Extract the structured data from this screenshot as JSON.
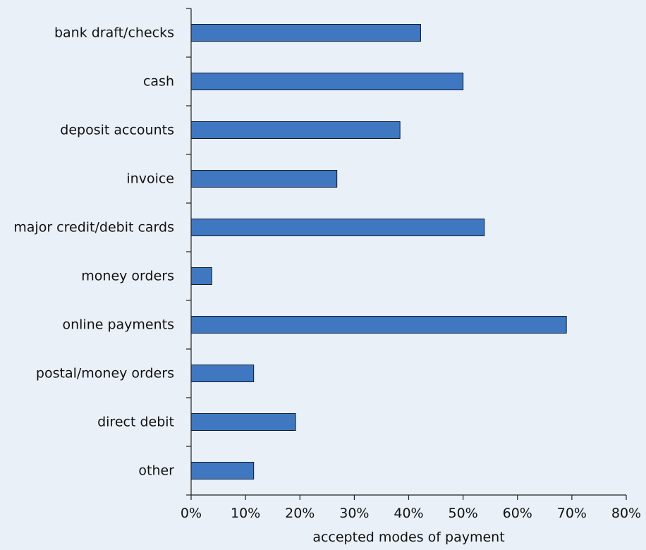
{
  "colors": {
    "background": "#eaf0f7",
    "bar_fill": "#3f78c0",
    "bar_stroke": "#0d1b33",
    "axis": "#222222",
    "text": "#111111"
  },
  "chart_data": {
    "type": "bar",
    "orientation": "horizontal",
    "title": "",
    "xlabel": "accepted modes of payment",
    "ylabel": "",
    "categories": [
      "bank draft/checks",
      "cash",
      "deposit accounts",
      "invoice",
      "major credit/debit cards",
      "money orders",
      "online payments",
      "postal/money orders",
      "direct debit",
      "other"
    ],
    "values": [
      42.2,
      50,
      38.4,
      26.8,
      53.9,
      3.8,
      69,
      11.5,
      19.2,
      11.5
    ],
    "value_unit": "%",
    "xlim": [
      0,
      80
    ],
    "x_ticks": [
      0,
      10,
      20,
      30,
      40,
      50,
      60,
      70,
      80
    ],
    "x_tick_labels": [
      "0%",
      "10%",
      "20%",
      "30%",
      "40%",
      "50%",
      "60%",
      "70%",
      "80%"
    ],
    "grid": false,
    "legend": "none"
  }
}
